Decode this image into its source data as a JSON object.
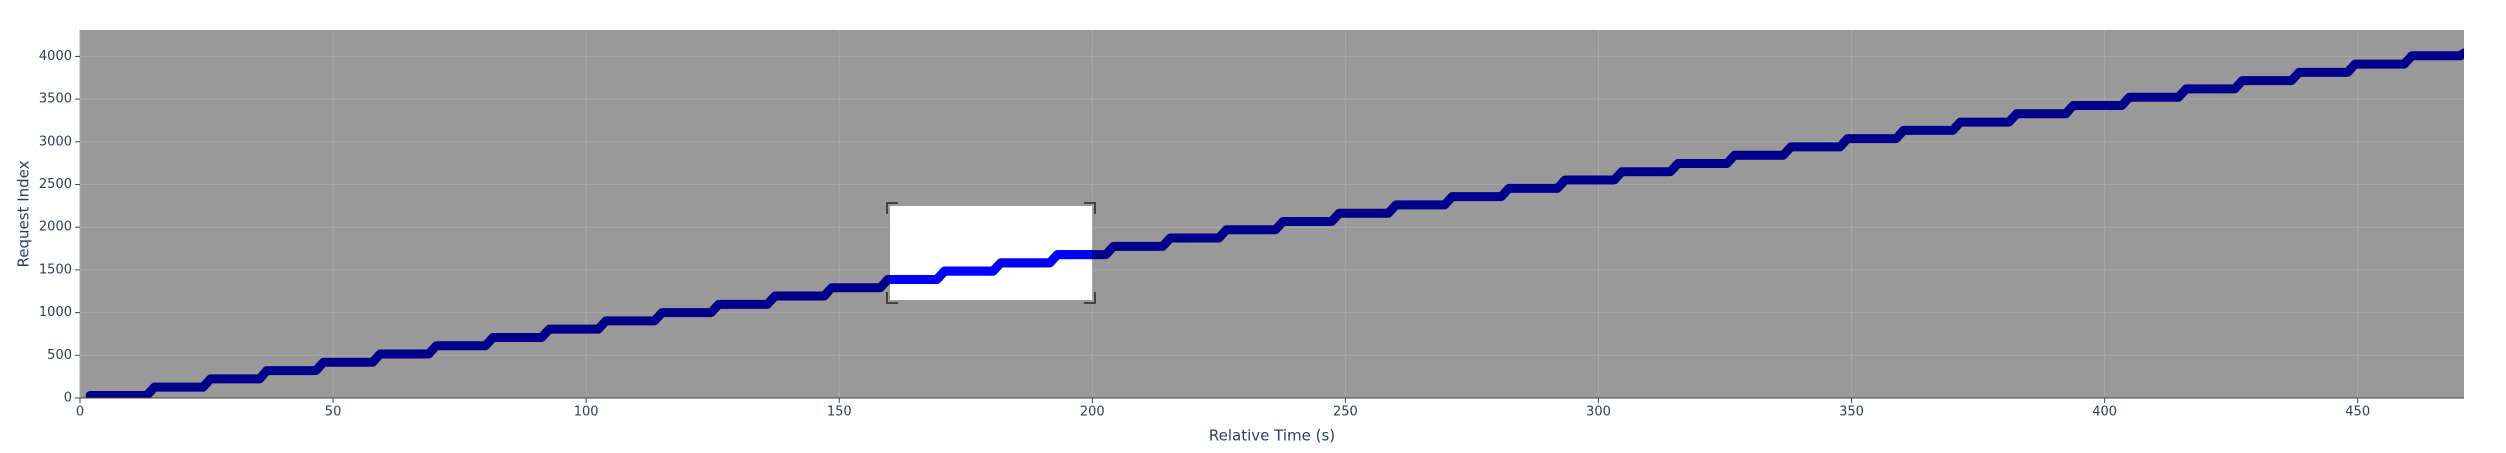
{
  "chart_data": {
    "type": "line",
    "x_label": "Relative Time (s)",
    "y_label": "Request Index",
    "xlim": [
      0,
      471
    ],
    "ylim": [
      0,
      4309
    ],
    "xticks": [
      0,
      50,
      100,
      150,
      200,
      250,
      300,
      350,
      400,
      450
    ],
    "yticks": [
      0,
      500,
      1000,
      1500,
      2000,
      2500,
      3000,
      3500,
      4000
    ],
    "grid": true,
    "series": [
      {
        "color": "#00008b",
        "x": [
          2,
          13.2,
          14.7,
          24.3,
          25.8,
          35.5,
          36.9,
          46.6,
          48.1,
          57.8,
          59.3,
          68.9,
          70.4,
          80.1,
          81.6,
          91.2,
          92.7,
          102.4,
          103.9,
          113.5,
          115.0,
          124.7,
          126.2,
          135.8,
          137.3,
          147.0,
          148.5,
          158.1,
          159.6,
          169.3,
          170.8,
          180.4,
          181.9,
          191.6,
          193.1,
          202.7,
          204.2,
          213.9,
          215.4,
          225.0,
          226.5,
          236.2,
          237.7,
          247.3,
          248.8,
          258.5,
          260.0,
          269.6,
          271.1,
          280.8,
          282.3,
          291.9,
          293.4,
          303.1,
          304.6,
          314.2,
          315.7,
          325.4,
          326.9,
          336.5,
          338.0,
          347.7,
          349.2,
          358.8,
          360.3,
          370.0,
          371.5,
          381.1,
          382.6,
          392.3,
          393.8,
          403.4,
          404.9,
          414.6,
          416.1,
          425.7,
          427.2,
          436.9,
          438.4,
          448.0,
          449.5,
          459.2,
          460.7,
          470.3,
          471
        ],
        "values": [
          30,
          30,
          127,
          127,
          224,
          224,
          321,
          321,
          418,
          418,
          515,
          515,
          612,
          612,
          709,
          709,
          806,
          806,
          903,
          903,
          1000,
          1000,
          1097,
          1097,
          1194,
          1194,
          1291,
          1291,
          1388,
          1388,
          1485,
          1485,
          1582,
          1582,
          1679,
          1679,
          1776,
          1776,
          1873,
          1873,
          1970,
          1970,
          2067,
          2067,
          2164,
          2164,
          2261,
          2261,
          2358,
          2358,
          2455,
          2455,
          2552,
          2552,
          2649,
          2649,
          2746,
          2746,
          2843,
          2843,
          2940,
          2940,
          3037,
          3037,
          3134,
          3134,
          3231,
          3231,
          3328,
          3328,
          3425,
          3425,
          3522,
          3522,
          3619,
          3619,
          3716,
          3716,
          3813,
          3813,
          3910,
          3910,
          4007,
          4007,
          4040
        ]
      }
    ]
  }
}
